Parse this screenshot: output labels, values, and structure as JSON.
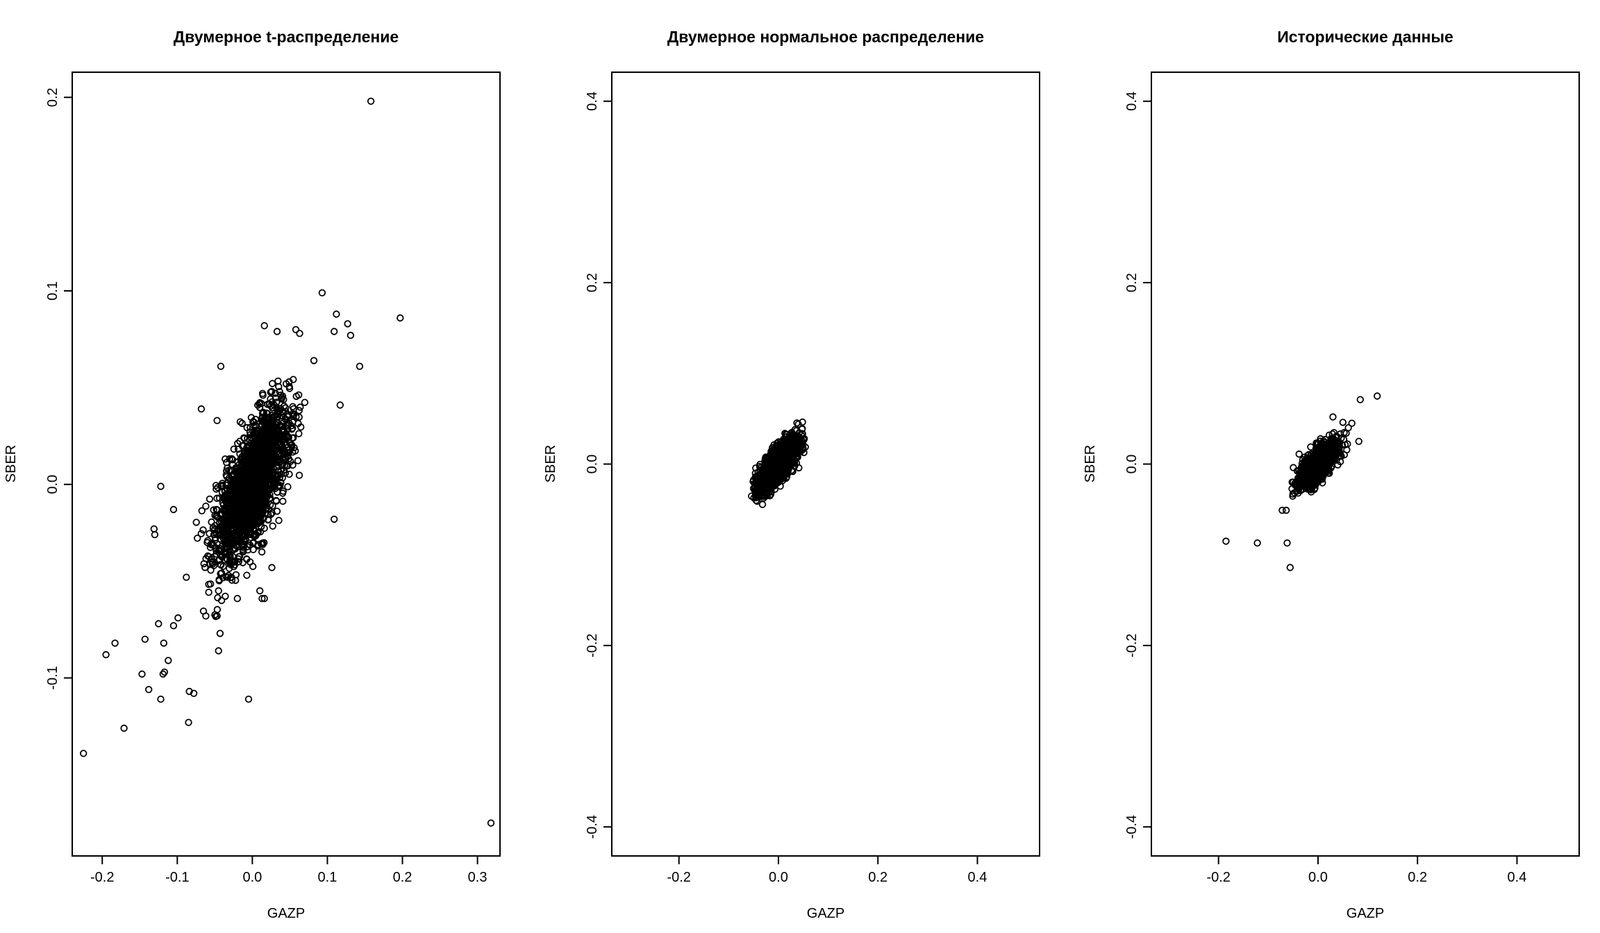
{
  "chart_data": [
    {
      "type": "scatter",
      "title": "Двумерное t-распределение",
      "xlabel": "GAZP",
      "ylabel": "SBER",
      "xlim": [
        -0.24,
        0.33
      ],
      "ylim": [
        -0.192,
        0.213
      ],
      "xticks": [
        -0.2,
        -0.1,
        0.0,
        0.1,
        0.2,
        0.3
      ],
      "xtick_labels": [
        "-0.2",
        "-0.1",
        "0.0",
        "0.1",
        "0.2",
        "0.3"
      ],
      "yticks": [
        -0.1,
        0.0,
        0.1,
        0.2
      ],
      "ytick_labels": [
        "-0.1",
        "0.0",
        "0.1",
        "0.2"
      ],
      "grid": false,
      "cloud": {
        "n": 1900,
        "mean": [
          0.0,
          0.0
        ],
        "sd": [
          0.025,
          0.02
        ],
        "corr": 0.7
      },
      "points": [
        [
          0.158,
          0.198
        ],
        [
          0.318,
          -0.175
        ],
        [
          -0.225,
          -0.139
        ],
        [
          0.197,
          0.086
        ],
        [
          0.093,
          0.099
        ],
        [
          0.112,
          0.088
        ],
        [
          0.127,
          0.083
        ],
        [
          0.131,
          0.077
        ],
        [
          0.109,
          0.079
        ],
        [
          0.143,
          0.061
        ],
        [
          0.117,
          0.041
        ],
        [
          0.109,
          -0.018
        ],
        [
          0.016,
          0.082
        ],
        [
          0.033,
          0.079
        ],
        [
          0.058,
          0.08
        ],
        [
          0.063,
          0.078
        ],
        [
          -0.042,
          0.061
        ],
        [
          -0.068,
          0.039
        ],
        [
          -0.047,
          0.033
        ],
        [
          -0.122,
          -0.001
        ],
        [
          -0.131,
          -0.023
        ],
        [
          -0.13,
          -0.026
        ],
        [
          -0.105,
          -0.013
        ],
        [
          -0.125,
          -0.072
        ],
        [
          -0.105,
          -0.073
        ],
        [
          -0.099,
          -0.069
        ],
        [
          -0.183,
          -0.082
        ],
        [
          -0.195,
          -0.088
        ],
        [
          -0.143,
          -0.08
        ],
        [
          -0.118,
          -0.082
        ],
        [
          -0.112,
          -0.091
        ],
        [
          -0.117,
          -0.097
        ],
        [
          -0.119,
          -0.098
        ],
        [
          -0.147,
          -0.098
        ],
        [
          -0.138,
          -0.106
        ],
        [
          -0.122,
          -0.111
        ],
        [
          -0.084,
          -0.107
        ],
        [
          -0.078,
          -0.108
        ],
        [
          -0.171,
          -0.126
        ],
        [
          -0.085,
          -0.123
        ],
        [
          -0.005,
          -0.111
        ],
        [
          -0.045,
          -0.086
        ],
        [
          -0.043,
          -0.077
        ],
        [
          -0.047,
          -0.068
        ],
        [
          -0.062,
          -0.068
        ],
        [
          -0.041,
          -0.06
        ],
        [
          -0.02,
          -0.059
        ],
        [
          0.01,
          -0.055
        ],
        [
          0.013,
          -0.059
        ],
        [
          0.016,
          -0.059
        ],
        [
          -0.088,
          -0.048
        ],
        [
          0.026,
          -0.043
        ],
        [
          -0.045,
          -0.055
        ],
        [
          0.082,
          0.064
        ]
      ]
    },
    {
      "type": "scatter",
      "title": "Двумерное нормальное распределение",
      "xlabel": "GAZP",
      "ylabel": "SBER",
      "xlim": [
        -0.335,
        0.525
      ],
      "ylim": [
        -0.432,
        0.432
      ],
      "xticks": [
        -0.2,
        0.0,
        0.2,
        0.4
      ],
      "xtick_labels": [
        "-0.2",
        "0.0",
        "0.2",
        "0.4"
      ],
      "yticks": [
        -0.4,
        -0.2,
        0.0,
        0.2,
        0.4
      ],
      "ytick_labels": [
        "-0.4",
        "-0.2",
        "0.0",
        "0.2",
        "0.4"
      ],
      "grid": false,
      "cloud": {
        "n": 1500,
        "mean": [
          0.0,
          0.0
        ],
        "sd": [
          0.02,
          0.015
        ],
        "corr": 0.75,
        "clip": 2.8
      },
      "points": [
        [
          -0.05,
          -0.027
        ],
        [
          0.048,
          0.039
        ],
        [
          0.052,
          0.028
        ],
        [
          -0.045,
          -0.04
        ],
        [
          0.04,
          0.044
        ]
      ]
    },
    {
      "type": "scatter",
      "title": "Исторические данные",
      "xlabel": "GAZP",
      "ylabel": "SBER",
      "xlim": [
        -0.335,
        0.525
      ],
      "ylim": [
        -0.432,
        0.432
      ],
      "xticks": [
        -0.2,
        0.0,
        0.2,
        0.4
      ],
      "xtick_labels": [
        "-0.2",
        "0.0",
        "0.2",
        "0.4"
      ],
      "yticks": [
        -0.4,
        -0.2,
        0.0,
        0.2,
        0.4
      ],
      "ytick_labels": [
        "-0.4",
        "-0.2",
        "0.0",
        "0.2",
        "0.4"
      ],
      "grid": false,
      "cloud": {
        "n": 1200,
        "mean": [
          0.0,
          0.0
        ],
        "sd": [
          0.02,
          0.012
        ],
        "corr": 0.7,
        "clip": 3.2
      },
      "points": [
        [
          -0.185,
          -0.085
        ],
        [
          -0.122,
          -0.087
        ],
        [
          -0.062,
          -0.087
        ],
        [
          -0.056,
          -0.114
        ],
        [
          -0.072,
          -0.051
        ],
        [
          -0.064,
          -0.051
        ],
        [
          0.085,
          0.071
        ],
        [
          0.119,
          0.075
        ],
        [
          0.061,
          0.04
        ],
        [
          0.068,
          0.045
        ],
        [
          0.082,
          0.025
        ],
        [
          -0.038,
          0.011
        ],
        [
          0.03,
          0.052
        ],
        [
          -0.05,
          -0.02
        ],
        [
          -0.04,
          -0.032
        ],
        [
          0.05,
          0.046
        ]
      ]
    }
  ]
}
